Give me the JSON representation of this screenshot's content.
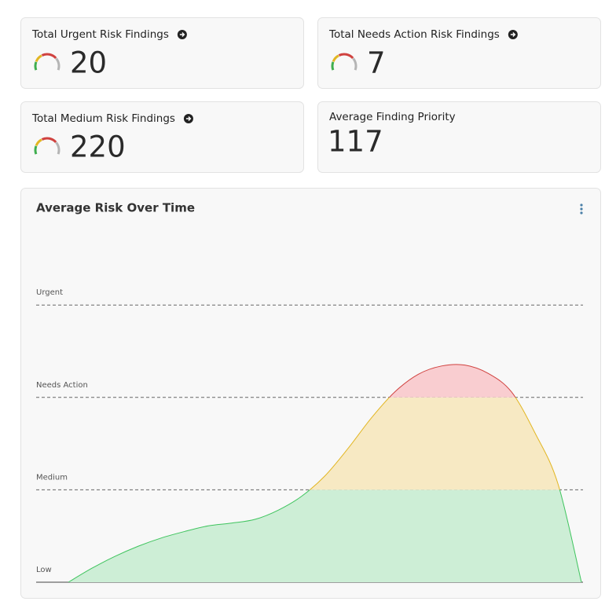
{
  "risk_cards": [
    {
      "title": "Total Urgent Risk Findings",
      "value": 20
    },
    {
      "title": "Total Needs Action Risk Findings",
      "value": 7
    },
    {
      "title": "Total Medium Risk Findings",
      "value": 220
    }
  ],
  "priority_card": {
    "title": "Average Finding Priority",
    "value": 117
  },
  "chart_data": {
    "type": "area",
    "title": "Average Risk Over Time",
    "values": [
      0,
      0.15,
      0.28,
      0.39,
      0.48,
      0.55,
      0.61,
      0.64,
      0.68,
      0.78,
      0.93,
      1.15,
      1.45,
      1.78,
      2.06,
      2.25,
      2.34,
      2.35,
      2.26,
      2.06,
      1.62,
      1.06,
      0
    ],
    "ylim": [
      0,
      3.75
    ],
    "yticks": [
      {
        "value": 0,
        "label": "Low"
      },
      {
        "value": 1,
        "label": "Medium"
      },
      {
        "value": 2,
        "label": "Needs Action"
      },
      {
        "value": 3,
        "label": "Urgent"
      }
    ],
    "line_colors": [
      "#3fc45e",
      "#e2b623",
      "#d0423f"
    ],
    "fill_colors": [
      "#cdeed6",
      "#f7e9c3",
      "#f9cdd0"
    ]
  }
}
